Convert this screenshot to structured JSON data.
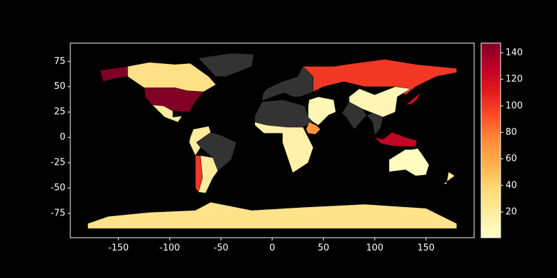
{
  "chart_data": {
    "type": "choropleth",
    "colormap": "YlOrRd",
    "missing_color": "#333333",
    "xlim": [
      -197,
      197
    ],
    "ylim": [
      -99,
      93
    ],
    "xticks": [
      -150,
      -100,
      -50,
      0,
      50,
      100,
      150
    ],
    "yticks": [
      -75,
      -50,
      -25,
      0,
      25,
      50,
      75
    ],
    "clim": [
      0.6,
      147.3
    ],
    "cticks": [
      20,
      40,
      60,
      80,
      100,
      120,
      140
    ],
    "regions": [
      {
        "value": 147,
        "lon": [
          -125,
          -95,
          -83,
          -67,
          -75,
          -81,
          -97,
          -106,
          -117,
          -124
        ],
        "lat": [
          49,
          49,
          46,
          45,
          35,
          25,
          26,
          31,
          32,
          40
        ]
      },
      {
        "value": 147,
        "lon": [
          -168,
          -141,
          -141,
          -150,
          -165
        ],
        "lat": [
          66,
          70,
          60,
          59,
          55
        ]
      },
      {
        "value": 30,
        "lon": [
          -141,
          -120,
          -95,
          -80,
          -62,
          -55,
          -67,
          -83,
          -95,
          -125,
          -141
        ],
        "lat": [
          70,
          74,
          72,
          73,
          60,
          52,
          45,
          46,
          49,
          49,
          60
        ]
      },
      {
        "value": null,
        "lon": [
          -55,
          -45,
          -20,
          -18,
          -40,
          -60,
          -72
        ],
        "lat": [
          60,
          60,
          70,
          82,
          83,
          80,
          78
        ]
      },
      {
        "value": 20,
        "lon": [
          -117,
          -106,
          -97,
          -97,
          -88,
          -92,
          -105
        ],
        "lat": [
          32,
          31,
          26,
          20,
          21,
          15,
          20
        ]
      },
      {
        "value": null,
        "lon": [
          -74,
          -60,
          -50,
          -35,
          -40,
          -53,
          -58,
          -70
        ],
        "lat": [
          -5,
          5,
          2,
          -5,
          -22,
          -33,
          -20,
          -10
        ]
      },
      {
        "value": 100,
        "lon": [
          -75,
          -70,
          -68,
          -72,
          -75
        ],
        "lat": [
          -18,
          -18,
          -40,
          -54,
          -50
        ]
      },
      {
        "value": 20,
        "lon": [
          -70,
          -58,
          -53,
          -58,
          -65,
          -72,
          -68
        ],
        "lat": [
          -18,
          -20,
          -33,
          -40,
          -55,
          -54,
          -40
        ]
      },
      {
        "value": 20,
        "lon": [
          -80,
          -77,
          -62,
          -60,
          -74,
          -70,
          -75,
          -81
        ],
        "lat": [
          0,
          8,
          11,
          5,
          -5,
          -10,
          -18,
          -5
        ]
      },
      {
        "value": null,
        "lon": [
          -10,
          -9,
          -5,
          5,
          10,
          25,
          30,
          40,
          40,
          27,
          20,
          12,
          0
        ],
        "lat": [
          36,
          43,
          48,
          53,
          55,
          60,
          70,
          60,
          45,
          40,
          40,
          44,
          40
        ]
      },
      {
        "value": 100,
        "lon": [
          30,
          60,
          80,
          110,
          140,
          180,
          180,
          160,
          140,
          130,
          120,
          90,
          70,
          50,
          40,
          40
        ],
        "lat": [
          70,
          70,
          73,
          77,
          72,
          68,
          64,
          60,
          50,
          42,
          50,
          50,
          55,
          50,
          45,
          60
        ]
      },
      {
        "value": null,
        "lon": [
          -17,
          -10,
          10,
          32,
          35,
          40,
          30,
          15,
          -5,
          -17
        ],
        "lat": [
          21,
          35,
          37,
          31,
          20,
          15,
          10,
          10,
          12,
          15
        ]
      },
      {
        "value": 15,
        "lon": [
          -17,
          -5,
          15,
          30,
          35,
          40,
          35,
          20,
          15,
          10,
          10,
          -8,
          -17
        ],
        "lat": [
          15,
          12,
          10,
          10,
          0,
          -10,
          -25,
          -35,
          -20,
          -5,
          4,
          4,
          12
        ]
      },
      {
        "value": 70,
        "lon": [
          33,
          36,
          43,
          47,
          42,
          35
        ],
        "lat": [
          8,
          15,
          12,
          8,
          3,
          4
        ]
      },
      {
        "value": 10,
        "lon": [
          35,
          36,
          45,
          60,
          62,
          55,
          45,
          40,
          35
        ],
        "lat": [
          30,
          37,
          40,
          37,
          25,
          22,
          12,
          15,
          20
        ]
      },
      {
        "value": null,
        "lon": [
          68,
          75,
          88,
          92,
          80,
          72
        ],
        "lat": [
          24,
          35,
          28,
          22,
          8,
          20
        ]
      },
      {
        "value": 10,
        "lon": [
          75,
          85,
          100,
          120,
          135,
          122,
          120,
          108,
          98,
          88,
          75
        ],
        "lat": [
          40,
          48,
          42,
          50,
          48,
          40,
          25,
          20,
          24,
          28,
          35
        ]
      },
      {
        "value": null,
        "lon": [
          92,
          98,
          108,
          106,
          100,
          98
        ],
        "lat": [
          22,
          24,
          20,
          10,
          2,
          15
        ]
      },
      {
        "value": 120,
        "lon": [
          130,
          134,
          141,
          145,
          141,
          136
        ],
        "lat": [
          32,
          35,
          41,
          44,
          37,
          33
        ]
      },
      {
        "value": 125,
        "lon": [
          95,
          106,
          115,
          125,
          140,
          141,
          130,
          125,
          117,
          108,
          100
        ],
        "lat": [
          5,
          -6,
          -8,
          -9,
          -9,
          -3,
          0,
          2,
          5,
          -2,
          0
        ]
      },
      {
        "value": 5,
        "lon": [
          114,
          114,
          130,
          140,
          150,
          153,
          145,
          142,
          136,
          130,
          122
        ],
        "lat": [
          -22,
          -34,
          -32,
          -38,
          -37,
          -27,
          -15,
          -11,
          -12,
          -12,
          -17
        ]
      },
      {
        "value": 28,
        "lon": [
          -180,
          180,
          180,
          150,
          90,
          30,
          -20,
          -60,
          -75,
          -120,
          -160,
          -180
        ],
        "lat": [
          -90,
          -90,
          -85,
          -70,
          -66,
          -69,
          -72,
          -64,
          -72,
          -74,
          -78,
          -85
        ]
      },
      {
        "value": 20,
        "lon": [
          172,
          178,
          174,
          167,
          170
        ],
        "lat": [
          -34,
          -38,
          -41,
          -46,
          -46
        ]
      }
    ]
  }
}
